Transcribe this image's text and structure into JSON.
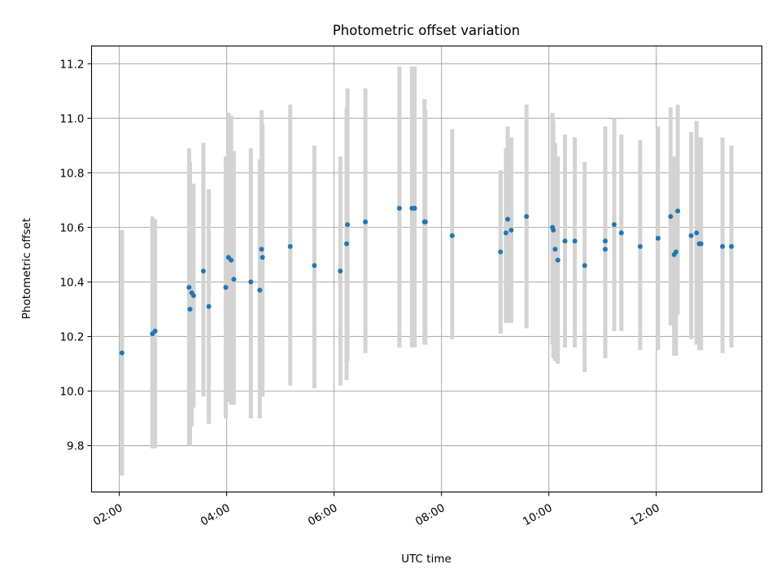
{
  "chart_data": {
    "type": "scatter",
    "title": "Photometric offset variation",
    "xlabel": "UTC time",
    "ylabel": "Photometric offset",
    "xlim": [
      "01:29",
      "13:58"
    ],
    "ylim": [
      9.63,
      11.265
    ],
    "x_ticks": [
      "02:00",
      "04:00",
      "06:00",
      "08:00",
      "10:00",
      "12:00"
    ],
    "y_ticks": [
      9.8,
      10.0,
      10.2,
      10.4,
      10.6,
      10.8,
      11.0,
      11.2
    ],
    "grid": true,
    "colors": {
      "point": "#1f77b4",
      "errorbar": "#d3d3d3",
      "grid": "#b0b0b0"
    },
    "series": [
      {
        "x": [
          "02:03",
          "02:37",
          "02:40",
          "03:18",
          "03:19",
          "03:21",
          "03:23",
          "03:34",
          "03:40",
          "03:59",
          "04:02",
          "04:05",
          "04:08",
          "04:27",
          "04:37",
          "04:39",
          "04:40",
          "05:11",
          "05:38",
          "06:07",
          "06:14",
          "06:15",
          "06:35",
          "07:13",
          "07:27",
          "07:30",
          "07:41",
          "07:42",
          "08:12",
          "09:06",
          "09:12",
          "09:14",
          "09:18",
          "09:35",
          "10:04",
          "10:05",
          "10:07",
          "10:10",
          "10:18",
          "10:29",
          "10:40",
          "11:03",
          "11:03",
          "11:13",
          "11:21",
          "11:42",
          "12:02",
          "12:16",
          "12:20",
          "12:22",
          "12:24",
          "12:39",
          "12:45",
          "12:48",
          "12:50",
          "13:14",
          "13:24"
        ],
        "y": [
          10.14,
          10.21,
          10.22,
          10.38,
          10.3,
          10.36,
          10.35,
          10.44,
          10.31,
          10.38,
          10.49,
          10.48,
          10.41,
          10.4,
          10.37,
          10.52,
          10.49,
          10.53,
          10.46,
          10.44,
          10.54,
          10.61,
          10.62,
          10.67,
          10.67,
          10.67,
          10.62,
          10.62,
          10.57,
          10.51,
          10.58,
          10.63,
          10.59,
          10.64,
          10.6,
          10.59,
          10.52,
          10.48,
          10.55,
          10.55,
          10.46,
          10.52,
          10.55,
          10.61,
          10.58,
          10.53,
          10.56,
          10.64,
          10.5,
          10.51,
          10.66,
          10.57,
          10.58,
          10.54,
          10.54,
          10.53,
          10.53
        ],
        "err_low": [
          9.69,
          9.79,
          9.79,
          9.8,
          9.8,
          9.87,
          9.94,
          9.98,
          9.88,
          9.9,
          9.96,
          9.95,
          9.95,
          9.9,
          9.9,
          9.98,
          9.98,
          10.02,
          10.01,
          10.02,
          10.04,
          10.11,
          10.14,
          10.16,
          10.16,
          10.16,
          10.17,
          10.17,
          10.19,
          10.21,
          10.25,
          10.25,
          10.25,
          10.23,
          10.17,
          10.12,
          10.11,
          10.1,
          10.16,
          10.16,
          10.07,
          10.12,
          10.14,
          10.22,
          10.22,
          10.15,
          10.15,
          10.24,
          10.13,
          10.13,
          10.28,
          10.19,
          10.17,
          10.15,
          10.15,
          10.14,
          10.16
        ],
        "err_high": [
          10.59,
          10.64,
          10.63,
          10.89,
          10.84,
          10.76,
          10.76,
          10.91,
          10.74,
          10.86,
          11.02,
          11.01,
          10.88,
          10.89,
          10.85,
          11.03,
          10.98,
          11.05,
          10.9,
          10.86,
          11.04,
          11.11,
          11.11,
          11.19,
          11.19,
          11.19,
          11.07,
          11.03,
          10.96,
          10.81,
          10.89,
          10.97,
          10.93,
          11.05,
          11.02,
          10.99,
          10.91,
          10.86,
          10.94,
          10.93,
          10.84,
          10.95,
          10.97,
          11.0,
          10.94,
          10.92,
          10.97,
          11.04,
          10.86,
          10.86,
          11.05,
          10.95,
          10.99,
          10.93,
          10.93,
          10.93,
          10.9
        ]
      }
    ]
  }
}
